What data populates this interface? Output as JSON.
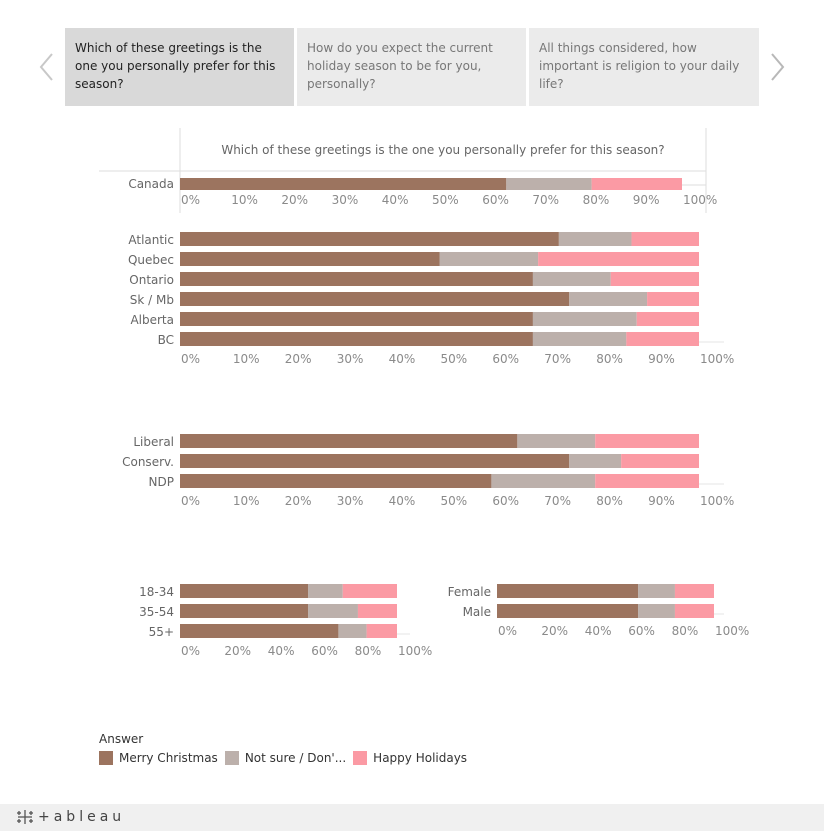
{
  "tabs": [
    {
      "label": "Which of these greetings is the one you personally prefer for this season?"
    },
    {
      "label": "How do you expect the current holiday season to be for you, personally?"
    },
    {
      "label": " All things considered, how important is religion to your daily life?"
    }
  ],
  "colors": {
    "merry_christmas": "#9c745f",
    "not_sure": "#bcb0ab",
    "happy_holidays": "#fb9aa4",
    "axis": "#dddddd",
    "tick_text": "#8a8a8a",
    "label_text": "#666666"
  },
  "legend": {
    "title": "Answer",
    "items": [
      {
        "label": "Merry Christmas",
        "color": "#9c745f"
      },
      {
        "label": "Not sure / Don'...",
        "color": "#bcb0ab"
      },
      {
        "label": "Happy Holidays",
        "color": "#fb9aa4"
      }
    ]
  },
  "footer": {
    "brand": "+ableau"
  },
  "chart_data": [
    {
      "type": "bar",
      "orientation": "horizontal",
      "stacked": true,
      "title": "Which of these greetings is the one you personally prefer for this season?",
      "categories": [
        "Canada"
      ],
      "series": [
        {
          "name": "Merry Christmas",
          "values": [
            65
          ]
        },
        {
          "name": "Not sure / Don'...",
          "values": [
            17
          ]
        },
        {
          "name": "Happy Holidays",
          "values": [
            18
          ]
        }
      ],
      "xlim": [
        0,
        100
      ],
      "ticks": [
        "0%",
        "10%",
        "20%",
        "30%",
        "40%",
        "50%",
        "60%",
        "70%",
        "80%",
        "90%",
        "100%"
      ]
    },
    {
      "type": "bar",
      "orientation": "horizontal",
      "stacked": true,
      "categories": [
        "Atlantic",
        "Quebec",
        "Ontario",
        "Sk / Mb",
        "Alberta",
        "BC"
      ],
      "series": [
        {
          "name": "Merry Christmas",
          "values": [
            73,
            50,
            68,
            75,
            68,
            68
          ]
        },
        {
          "name": "Not sure / Don'...",
          "values": [
            14,
            19,
            15,
            15,
            20,
            18
          ]
        },
        {
          "name": "Happy Holidays",
          "values": [
            13,
            31,
            17,
            10,
            12,
            14
          ]
        }
      ],
      "xlim": [
        0,
        100
      ],
      "ticks": [
        "0%",
        "10%",
        "20%",
        "30%",
        "40%",
        "50%",
        "60%",
        "70%",
        "80%",
        "90%",
        "100%"
      ]
    },
    {
      "type": "bar",
      "orientation": "horizontal",
      "stacked": true,
      "categories": [
        "Liberal",
        "Conserv.",
        "NDP"
      ],
      "series": [
        {
          "name": "Merry Christmas",
          "values": [
            65,
            75,
            60
          ]
        },
        {
          "name": "Not sure / Don'...",
          "values": [
            15,
            10,
            20
          ]
        },
        {
          "name": "Happy Holidays",
          "values": [
            20,
            15,
            20
          ]
        }
      ],
      "xlim": [
        0,
        100
      ],
      "ticks": [
        "0%",
        "10%",
        "20%",
        "30%",
        "40%",
        "50%",
        "60%",
        "70%",
        "80%",
        "90%",
        "100%"
      ]
    },
    {
      "type": "bar",
      "orientation": "horizontal",
      "stacked": true,
      "categories": [
        "18-34",
        "35-54",
        "55+"
      ],
      "series": [
        {
          "name": "Merry Christmas",
          "values": [
            59,
            59,
            73
          ]
        },
        {
          "name": "Not sure / Don'...",
          "values": [
            16,
            23,
            13
          ]
        },
        {
          "name": "Happy Holidays",
          "values": [
            25,
            18,
            14
          ]
        }
      ],
      "xlim": [
        0,
        100
      ],
      "ticks": [
        "0%",
        "20%",
        "40%",
        "60%",
        "80%",
        "100%"
      ]
    },
    {
      "type": "bar",
      "orientation": "horizontal",
      "stacked": true,
      "categories": [
        "Female",
        "Male"
      ],
      "series": [
        {
          "name": "Merry Christmas",
          "values": [
            65,
            65
          ]
        },
        {
          "name": "Not sure / Don'...",
          "values": [
            17,
            17
          ]
        },
        {
          "name": "Happy Holidays",
          "values": [
            18,
            18
          ]
        }
      ],
      "xlim": [
        0,
        100
      ],
      "ticks": [
        "0%",
        "20%",
        "40%",
        "60%",
        "80%",
        "100%"
      ]
    }
  ]
}
